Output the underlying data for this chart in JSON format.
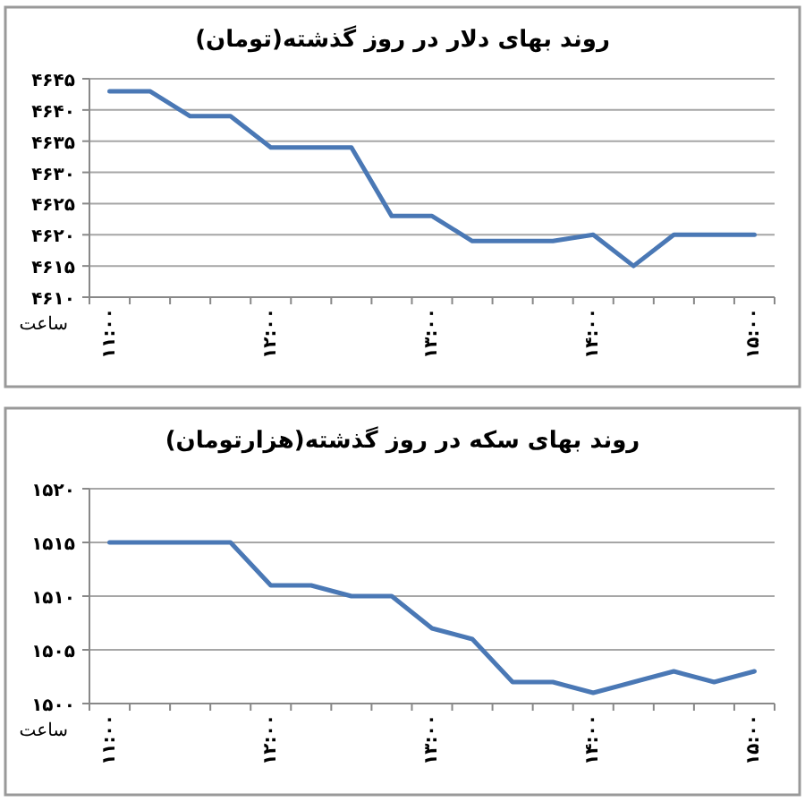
{
  "chart_data": [
    {
      "type": "line",
      "title": "روند بهای دلار در روز گذشته(تومان)",
      "xlabel": "ساعت",
      "categories": [
        "۱۱:۰۰",
        null,
        null,
        null,
        "۱۲:۰۰",
        null,
        null,
        null,
        "۱۳:۰۰",
        null,
        null,
        null,
        "۱۴:۰۰",
        null,
        null,
        null,
        "۱۵:۰۰"
      ],
      "values": [
        4643,
        4643,
        4639,
        4639,
        4634,
        4634,
        4634,
        4623,
        4623,
        4619,
        4619,
        4619,
        4620,
        4615,
        4620,
        4620,
        4620
      ],
      "color": "#4a78b5",
      "ylim": [
        4610,
        4645
      ],
      "yticks": [
        {
          "value": 4610,
          "label": "۴۶۱۰"
        },
        {
          "value": 4615,
          "label": "۴۶۱۵"
        },
        {
          "value": 4620,
          "label": "۴۶۲۰"
        },
        {
          "value": 4625,
          "label": "۴۶۲۵"
        },
        {
          "value": 4630,
          "label": "۴۶۳۰"
        },
        {
          "value": 4635,
          "label": "۴۶۳۵"
        },
        {
          "value": 4640,
          "label": "۴۶۴۰"
        },
        {
          "value": 4645,
          "label": "۴۶۴۵"
        }
      ],
      "grid": "y"
    },
    {
      "type": "line",
      "title": "روند بهای سکه در روز گذشته(هزارتومان)",
      "xlabel": "ساعت",
      "categories": [
        "۱۱:۰۰",
        null,
        null,
        null,
        "۱۲:۰۰",
        null,
        null,
        null,
        "۱۳:۰۰",
        null,
        null,
        null,
        "۱۴:۰۰",
        null,
        null,
        null,
        "۱۵:۰۰"
      ],
      "values": [
        1515,
        1515,
        1515,
        1515,
        1511,
        1511,
        1510,
        1510,
        1507,
        1506,
        1502,
        1502,
        1501,
        1502,
        1503,
        1502,
        1503
      ],
      "color": "#4a78b5",
      "ylim": [
        1500,
        1520
      ],
      "yticks": [
        {
          "value": 1500,
          "label": "۱۵۰۰"
        },
        {
          "value": 1505,
          "label": "۱۵۰۵"
        },
        {
          "value": 1510,
          "label": "۱۵۱۰"
        },
        {
          "value": 1515,
          "label": "۱۵۱۵"
        },
        {
          "value": 1520,
          "label": "۱۵۲۰"
        }
      ],
      "grid": "y"
    }
  ]
}
